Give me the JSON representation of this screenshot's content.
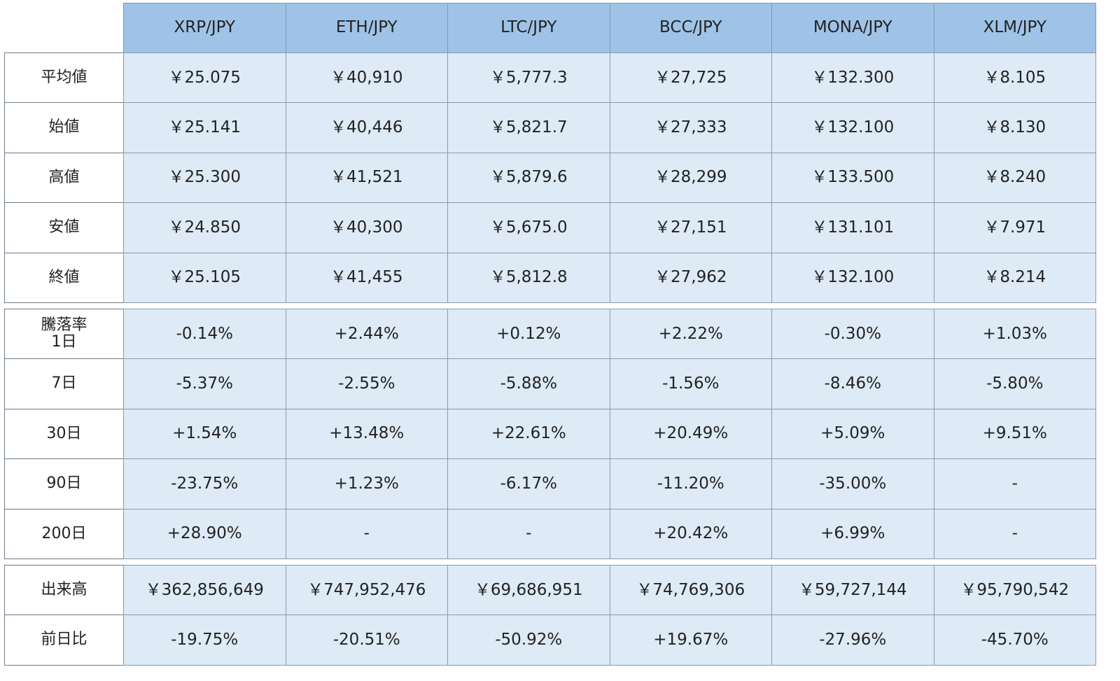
{
  "table": {
    "columns": [
      "XRP/JPY",
      "ETH/JPY",
      "LTC/JPY",
      "BCC/JPY",
      "MONA/JPY",
      "XLM/JPY"
    ],
    "sections": [
      {
        "rows": [
          {
            "label": "平均値",
            "cells": [
              "￥25.075",
              "￥40,910",
              "￥5,777.3",
              "￥27,725",
              "￥132.300",
              "￥8.105"
            ]
          },
          {
            "label": "始値",
            "cells": [
              "￥25.141",
              "￥40,446",
              "￥5,821.7",
              "￥27,333",
              "￥132.100",
              "￥8.130"
            ]
          },
          {
            "label": "高値",
            "cells": [
              "￥25.300",
              "￥41,521",
              "￥5,879.6",
              "￥28,299",
              "￥133.500",
              "￥8.240"
            ]
          },
          {
            "label": "安値",
            "cells": [
              "￥24.850",
              "￥40,300",
              "￥5,675.0",
              "￥27,151",
              "￥131.101",
              "￥7.971"
            ]
          },
          {
            "label": "終値",
            "cells": [
              "￥25.105",
              "￥41,455",
              "￥5,812.8",
              "￥27,962",
              "￥132.100",
              "￥8.214"
            ]
          }
        ]
      },
      {
        "title": "騰落率",
        "rows": [
          {
            "label": "1日",
            "cells": [
              "-0.14%",
              "+2.44%",
              "+0.12%",
              "+2.22%",
              "-0.30%",
              "+1.03%"
            ]
          },
          {
            "label": "7日",
            "cells": [
              "-5.37%",
              "-2.55%",
              "-5.88%",
              "-1.56%",
              "-8.46%",
              "-5.80%"
            ]
          },
          {
            "label": "30日",
            "cells": [
              "+1.54%",
              "+13.48%",
              "+22.61%",
              "+20.49%",
              "+5.09%",
              "+9.51%"
            ]
          },
          {
            "label": "90日",
            "cells": [
              "-23.75%",
              "+1.23%",
              "-6.17%",
              "-11.20%",
              "-35.00%",
              "-"
            ]
          },
          {
            "label": "200日",
            "cells": [
              "+28.90%",
              "-",
              "-",
              "+20.42%",
              "+6.99%",
              "-"
            ]
          }
        ]
      },
      {
        "rows": [
          {
            "label": "出来高",
            "cells": [
              "￥362,856,649",
              "￥747,952,476",
              "￥69,686,951",
              "￥74,769,306",
              "￥59,727,144",
              "￥95,790,542"
            ]
          },
          {
            "label": "前日比",
            "cells": [
              "-19.75%",
              "-20.51%",
              "-50.92%",
              "+19.67%",
              "-27.96%",
              "-45.70%"
            ]
          }
        ]
      }
    ]
  }
}
